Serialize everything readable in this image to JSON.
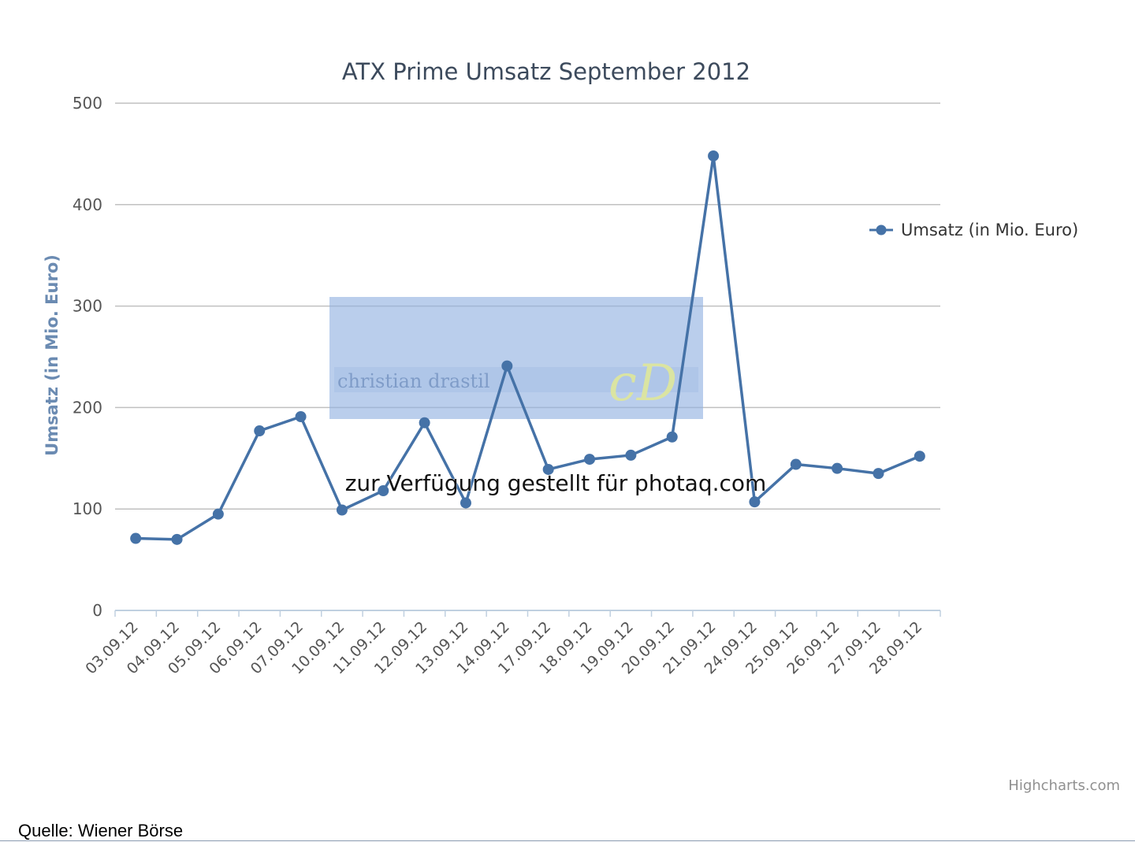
{
  "chart_data": {
    "type": "line",
    "title": "ATX Prime Umsatz September 2012",
    "ylabel": "Umsatz (in Mio. Euro)",
    "xlabel": "",
    "categories": [
      "03.09.12",
      "04.09.12",
      "05.09.12",
      "06.09.12",
      "07.09.12",
      "10.09.12",
      "11.09.12",
      "12.09.12",
      "13.09.12",
      "14.09.12",
      "17.09.12",
      "18.09.12",
      "19.09.12",
      "20.09.12",
      "21.09.12",
      "24.09.12",
      "25.09.12",
      "26.09.12",
      "27.09.12",
      "28.09.12"
    ],
    "series": [
      {
        "name": "Umsatz (in Mio. Euro)",
        "color": "#4572a7",
        "values": [
          71,
          70,
          95,
          177,
          191,
          99,
          118,
          185,
          106,
          241,
          139,
          149,
          153,
          171,
          448,
          107,
          144,
          140,
          135,
          152
        ]
      }
    ],
    "ylim": [
      0,
      500
    ],
    "yticks": [
      0,
      100,
      200,
      300,
      400,
      500
    ],
    "grid": true,
    "legend_position": "right"
  },
  "credit": "Highcharts.com",
  "source": "Quelle: Wiener Börse",
  "watermark_text": "zur Verfügung gestellt für photaq.com",
  "logo": {
    "text": "christian drastil",
    "initials": "cD",
    "color": "#8fb0e0"
  }
}
